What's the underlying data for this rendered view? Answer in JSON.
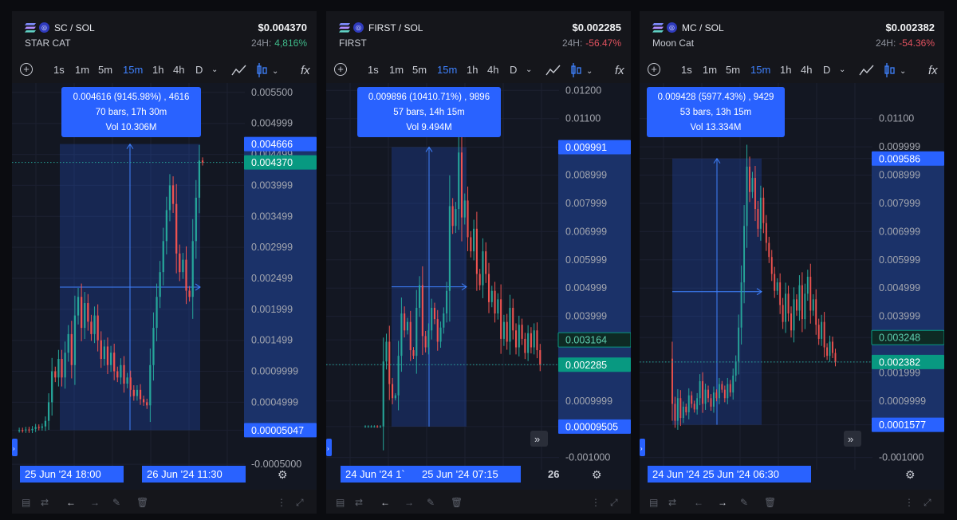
{
  "toolbar": {
    "intervals": [
      "1s",
      "1m",
      "5m",
      "15m",
      "1h",
      "4h",
      "D"
    ],
    "active": "15m"
  },
  "panels": [
    {
      "pair": "SC / SOL",
      "name": "STAR CAT",
      "price": "$0.004370",
      "change_label": "24H:",
      "change_value": "4,816%",
      "change_dir": "up",
      "tooltip": [
        "0.004616 (9145.98%) , 4616",
        "70 bars, 17h 30m",
        "Vol 10.306M"
      ],
      "chart_data": {
        "type": "candlestick",
        "y_range": [
          -0.00055,
          0.0056
        ],
        "y_ticks": [
          "0.005500",
          "0.004999",
          "0.004499",
          "0.003999",
          "0.003499",
          "0.002999",
          "0.002499",
          "0.001999",
          "0.001499",
          "0.0009999",
          "0.0004999",
          "0.00005047",
          "-0.0005000"
        ],
        "y_tick_values": [
          0.0055,
          0.004999,
          0.004499,
          0.003999,
          0.003499,
          0.002999,
          0.002499,
          0.001999,
          0.001499,
          0.0009999,
          0.0004999,
          5.047e-05,
          -0.0005
        ],
        "path_values": [
          5.047e-05,
          5.047e-05,
          5e-05,
          6e-05,
          5e-05,
          7e-05,
          0.0001,
          9e-05,
          0.00011,
          0.0002,
          0.0005,
          0.001,
          0.0009,
          0.0012,
          0.0009,
          0.0013,
          0.0016,
          0.0011,
          0.0019,
          0.0022,
          0.0017,
          0.0021,
          0.0018,
          0.0016,
          0.0019,
          0.0015,
          0.0012,
          0.0014,
          0.0011,
          0.0013,
          0.001,
          0.0009,
          0.0011,
          0.0008,
          0.0009,
          0.0007,
          0.0006,
          0.0007,
          0.00055,
          0.0005,
          0.00045,
          0.0011,
          0.0017,
          0.0022,
          0.0026,
          0.0031,
          0.0036,
          0.004,
          0.0037,
          0.0029,
          0.0026,
          0.0028,
          0.0023,
          0.0022,
          0.0031,
          0.0038,
          0.0044,
          0.00437
        ],
        "labels": [
          {
            "value": "0.004666",
            "y": 0.004666,
            "style": "blue"
          },
          {
            "value": "0.004370",
            "y": 0.00437,
            "style": "green"
          },
          {
            "value": "0.00005047",
            "y": 5.047e-05,
            "style": "blue"
          }
        ],
        "current_price": 0.00437,
        "measure_range": [
          5.047e-05,
          0.004666
        ],
        "x_labels": [
          {
            "text": "25 Jun '24   18:00",
            "style": "box"
          },
          {
            "text": "26 Jun '24   11:30",
            "style": "box"
          }
        ]
      }
    },
    {
      "pair": "FIRST / SOL",
      "name": "FIRST",
      "price": "$0.002285",
      "change_label": "24H:",
      "change_value": "-56.47%",
      "change_dir": "down",
      "tooltip": [
        "0.009896 (10410.71%) , 9896",
        "57 bars, 14h 15m",
        "Vol 9.494M"
      ],
      "chart_data": {
        "type": "candlestick",
        "y_range": [
          -0.00135,
          0.01215
        ],
        "y_ticks": [
          "0.01200",
          "0.01100",
          "0.009991",
          "0.008999",
          "0.007999",
          "0.006999",
          "0.005999",
          "0.004999",
          "0.003999",
          "0.003164",
          "0.002285",
          "0.0009999",
          "0.00009505",
          "-0.001000"
        ],
        "y_tick_values": [
          0.012,
          0.011,
          0.009991,
          0.008999,
          0.007999,
          0.006999,
          0.005999,
          0.004999,
          0.003999,
          0.003164,
          0.002285,
          0.0009999,
          9.505e-05,
          -0.001
        ],
        "path_values": [
          0.0001,
          0.0001,
          0.0001,
          0.0001,
          0.0001,
          9.505e-05,
          0.0001,
          0.0024,
          0.0031,
          0.0016,
          0.0011,
          0.0012,
          0.0026,
          0.0041,
          0.0035,
          0.0038,
          0.0028,
          0.0026,
          0.0043,
          0.0051,
          0.0033,
          0.0029,
          0.0035,
          0.0043,
          0.0039,
          0.0031,
          0.0036,
          0.0041,
          0.0049,
          0.0079,
          0.0072,
          0.0078,
          0.0098,
          0.0075,
          0.0081,
          0.0068,
          0.0063,
          0.0071,
          0.0055,
          0.0051,
          0.0063,
          0.0055,
          0.0045,
          0.0049,
          0.0041,
          0.0046,
          0.0032,
          0.0038,
          0.0031,
          0.0043,
          0.0035,
          0.0029,
          0.0037,
          0.0032,
          0.0027,
          0.0034,
          0.0029,
          0.0035,
          0.0028,
          0.00228
        ],
        "labels": [
          {
            "value": "0.009991",
            "y": 0.009991,
            "style": "blue"
          },
          {
            "value": "0.003164",
            "y": 0.003164,
            "style": "greenoutline"
          },
          {
            "value": "0.002285",
            "y": 0.002285,
            "style": "green"
          },
          {
            "value": "0.00009505",
            "y": 9.505e-05,
            "style": "blue"
          }
        ],
        "current_price": 0.002285,
        "measure_range": [
          9.505e-05,
          0.009991
        ],
        "x_labels": [
          {
            "text": "24 Jun '24  1`",
            "style": "box"
          },
          {
            "text": "25 Jun '24   07:15",
            "style": "box"
          },
          {
            "text": "26",
            "style": "plain"
          }
        ]
      }
    },
    {
      "pair": "MC / SOL",
      "name": "Moon Cat",
      "price": "$0.002382",
      "change_label": "24H:",
      "change_value": "-54.36%",
      "change_dir": "down",
      "tooltip": [
        "0.009428 (5977.43%) , 9429",
        "53 bars, 13h 15m",
        "Vol 13.334M"
      ],
      "chart_data": {
        "type": "candlestick",
        "y_range": [
          -0.00135,
          0.01215
        ],
        "y_ticks": [
          "0.01100",
          "0.009999",
          "0.009586",
          "0.008999",
          "0.007999",
          "0.006999",
          "0.005999",
          "0.004999",
          "0.003999",
          "0.003248",
          "0.002382",
          "0.001999",
          "0.0009999",
          "0.0001577",
          "-0.001000"
        ],
        "y_tick_values": [
          0.011,
          0.009999,
          0.009586,
          0.008999,
          0.007999,
          0.006999,
          0.005999,
          0.004999,
          0.003999,
          0.003248,
          0.002382,
          0.001999,
          0.0009999,
          0.0001577,
          -0.001
        ],
        "path_values": [
          0.0025,
          0.0009,
          0.0003,
          0.0011,
          0.0004,
          0.0008,
          0.0006,
          0.0012,
          0.0009,
          0.0007,
          0.0011,
          0.0017,
          0.0009,
          0.0014,
          0.0011,
          0.0008,
          0.0013,
          0.0011,
          0.0016,
          0.0014,
          0.0011,
          0.0016,
          0.0013,
          0.0019,
          0.0024,
          0.0036,
          0.0052,
          0.0072,
          0.0093,
          0.0084,
          0.0089,
          0.0078,
          0.0071,
          0.0082,
          0.0073,
          0.0066,
          0.0061,
          0.0055,
          0.0049,
          0.0052,
          0.0044,
          0.0038,
          0.0048,
          0.0041,
          0.0035,
          0.0046,
          0.0042,
          0.0051,
          0.0039,
          0.0048,
          0.0054,
          0.0042,
          0.0046,
          0.0037,
          0.0032,
          0.0038,
          0.0029,
          0.0026,
          0.0031,
          0.0027,
          0.00238
        ],
        "labels": [
          {
            "value": "0.009586",
            "y": 0.009586,
            "style": "blue"
          },
          {
            "value": "0.003248",
            "y": 0.003248,
            "style": "greenoutline"
          },
          {
            "value": "0.002382",
            "y": 0.002382,
            "style": "green"
          },
          {
            "value": "0.0001577",
            "y": 0.0001577,
            "style": "blue"
          }
        ],
        "current_price": 0.002382,
        "measure_range": [
          0.0001577,
          0.009586
        ],
        "x_labels": [
          {
            "text": "24 Jun '24   25 Jun '24   06:30",
            "style": "box"
          }
        ]
      }
    }
  ],
  "colors": {
    "accent": "#2962ff",
    "up": "#26a69a",
    "down": "#ef5350",
    "green_label": "#089981",
    "blue_label": "#2962ff"
  }
}
